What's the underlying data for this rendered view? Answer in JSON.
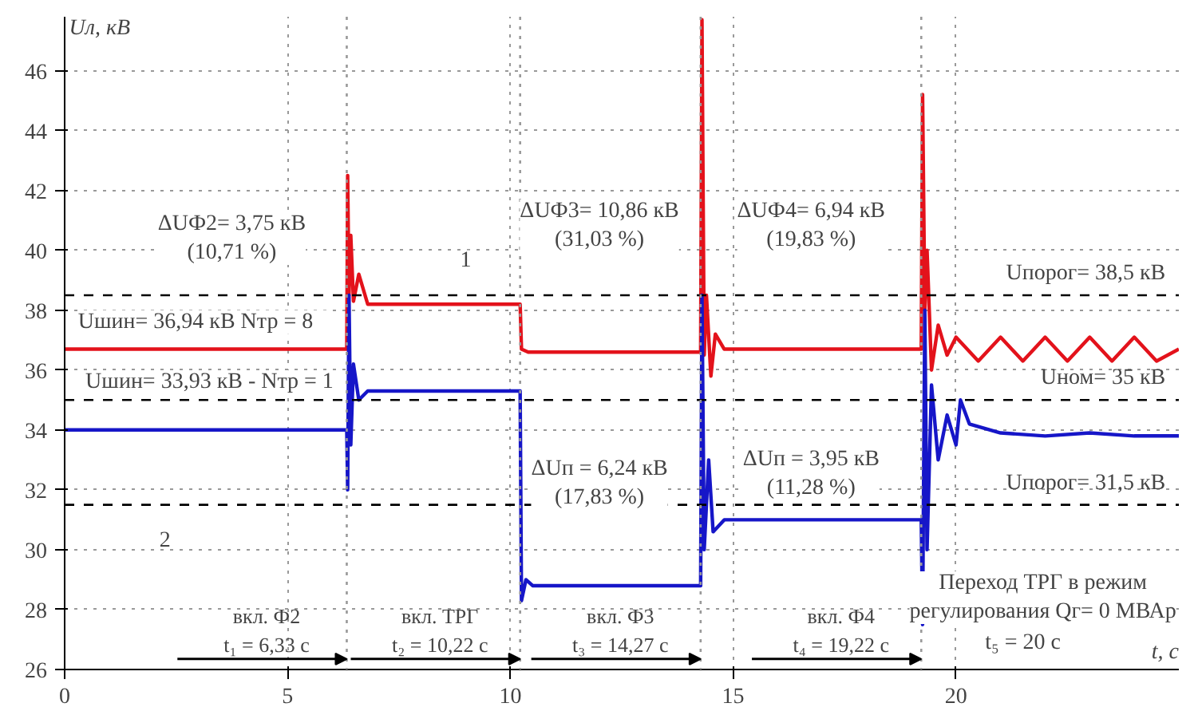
{
  "chart_data": {
    "type": "line",
    "xlabel": "t, с",
    "ylabel": "Uл, кВ",
    "xlim": [
      0,
      25
    ],
    "ylim": [
      26,
      47.8
    ],
    "xticks": [
      0,
      5,
      10,
      15,
      20
    ],
    "yticks": [
      26,
      28,
      30,
      32,
      34,
      36,
      38,
      40,
      42,
      44,
      46
    ],
    "grid": true,
    "line_style": "solid",
    "series": [
      {
        "color": "#e3121b",
        "x": [
          0,
          6.33,
          6.35,
          6.38,
          6.42,
          6.48,
          6.6,
          6.8,
          10.22,
          10.25,
          10.4,
          14.27,
          14.3,
          14.35,
          14.4,
          14.5,
          14.6,
          14.8,
          19.22,
          19.25,
          19.3,
          19.35,
          19.45,
          19.6,
          19.8,
          20.0,
          20.5,
          21.0,
          21.5,
          22.0,
          22.5,
          23.0,
          23.5,
          24.0,
          24.5,
          25.0
        ],
        "values": [
          36.7,
          36.7,
          42.5,
          38.5,
          40.5,
          38.3,
          39.2,
          38.2,
          38.2,
          36.7,
          36.6,
          36.6,
          47.7,
          36.5,
          38.5,
          35.8,
          37.2,
          36.7,
          36.7,
          45.2,
          38.0,
          40.0,
          36.0,
          37.5,
          36.5,
          37.1,
          36.3,
          37.1,
          36.3,
          37.1,
          36.3,
          37.1,
          36.3,
          37.1,
          36.3,
          36.7
        ]
      },
      {
        "color": "#1616c8",
        "x": [
          0,
          6.33,
          6.35,
          6.38,
          6.42,
          6.48,
          6.6,
          6.8,
          10.22,
          10.25,
          10.35,
          10.5,
          14.27,
          14.3,
          14.35,
          14.45,
          14.55,
          14.8,
          19.22,
          19.25,
          19.3,
          19.35,
          19.45,
          19.6,
          19.8,
          20.0,
          20.1,
          20.3,
          21.0,
          22.0,
          23.0,
          24.0,
          25.0
        ],
        "values": [
          34.0,
          34.0,
          32.0,
          38.5,
          33.5,
          36.2,
          35.0,
          35.3,
          35.3,
          28.3,
          29.0,
          28.8,
          28.8,
          38.5,
          30.0,
          33.0,
          30.6,
          31.0,
          31.0,
          27.5,
          38.0,
          30.0,
          35.5,
          33.0,
          34.5,
          33.5,
          35.0,
          34.2,
          33.9,
          33.8,
          33.9,
          33.8,
          33.8
        ]
      }
    ],
    "ref_lines": [
      {
        "axis": "y",
        "value": 38.5,
        "label": "Uпорог= 38,5 кВ",
        "color": "#000000",
        "line_style": "dashed"
      },
      {
        "axis": "y",
        "value": 35,
        "label": "Uном= 35 кВ",
        "color": "#000000",
        "line_style": "dashed"
      },
      {
        "axis": "y",
        "value": 31.5,
        "label": "Uпорог= 31,5 кВ",
        "color": "#000000",
        "line_style": "dashed"
      },
      {
        "axis": "x",
        "value": 6.33,
        "label": "вкл. Ф2\nt₁ = 6,33 с",
        "color": "#999999",
        "line_style": "dotted"
      },
      {
        "axis": "x",
        "value": 10.22,
        "label": "вкл. ТРГ\nt₂ = 10,22 с",
        "color": "#999999",
        "line_style": "dotted"
      },
      {
        "axis": "x",
        "value": 14.27,
        "label": "вкл. Ф3\nt₃ = 14,27 с",
        "color": "#999999",
        "line_style": "dotted"
      },
      {
        "axis": "x",
        "value": 19.22,
        "label": "вкл. Ф4\nt₄ = 19,22 с",
        "color": "#999999",
        "line_style": "dotted"
      }
    ],
    "annotations": [
      "ΔUФ2= 3,75 кВ\n(10,71 %)",
      "Uшин= 36,94 кВ    Nтр = 8",
      "Uшин= 33,93 кВ - Nтр = 1",
      "ΔUФ3= 10,86 кВ\n(31,03 %)",
      "ΔUФ4= 6,94 кВ\n(19,83 %)",
      "ΔUп = 6,24 кВ\n(17,83 %)",
      "ΔUп = 3,95 кВ\n(11,28 %)",
      "Переход ТРГ в режим\nрегулирования Qг= 0 МВАр",
      "t₅ = 20 с",
      "1",
      "2"
    ]
  }
}
